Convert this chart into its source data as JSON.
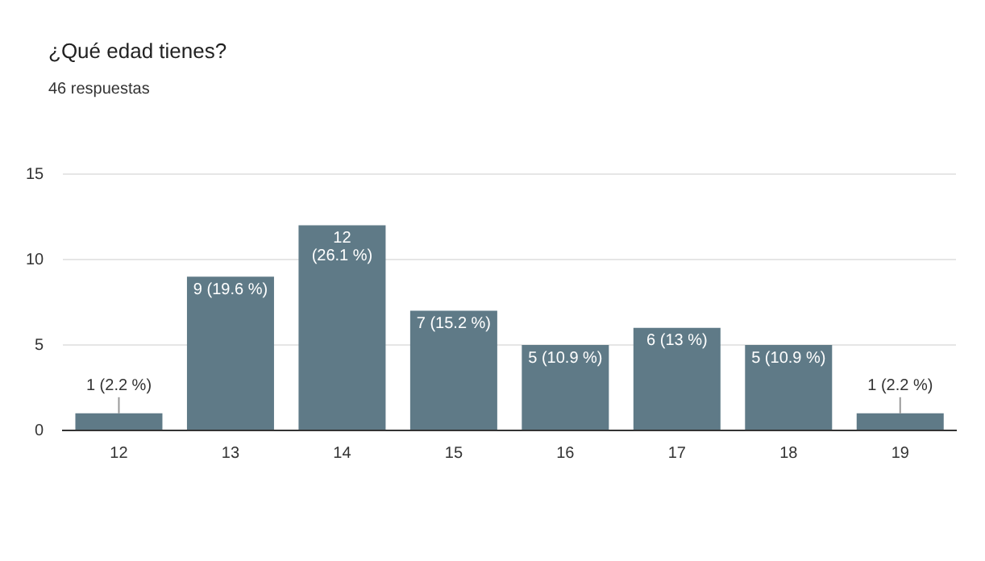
{
  "chart_data": {
    "type": "bar",
    "title": "¿Qué edad tienes?",
    "subtitle": "46 respuestas",
    "categories": [
      "12",
      "13",
      "14",
      "15",
      "16",
      "17",
      "18",
      "19"
    ],
    "values": [
      1,
      9,
      12,
      7,
      5,
      6,
      5,
      1
    ],
    "value_labels": [
      "1 (2.2 %)",
      "9 (19.6 %)",
      "12 (26.1 %)",
      "7 (15.2 %)",
      "5 (10.9 %)",
      "6 (13 %)",
      "5 (10.9 %)",
      "1 (2.2 %)"
    ],
    "color": "#5f7a87",
    "ylim": [
      0,
      15
    ],
    "yticks": [
      0,
      5,
      10,
      15
    ],
    "grid": "y"
  }
}
